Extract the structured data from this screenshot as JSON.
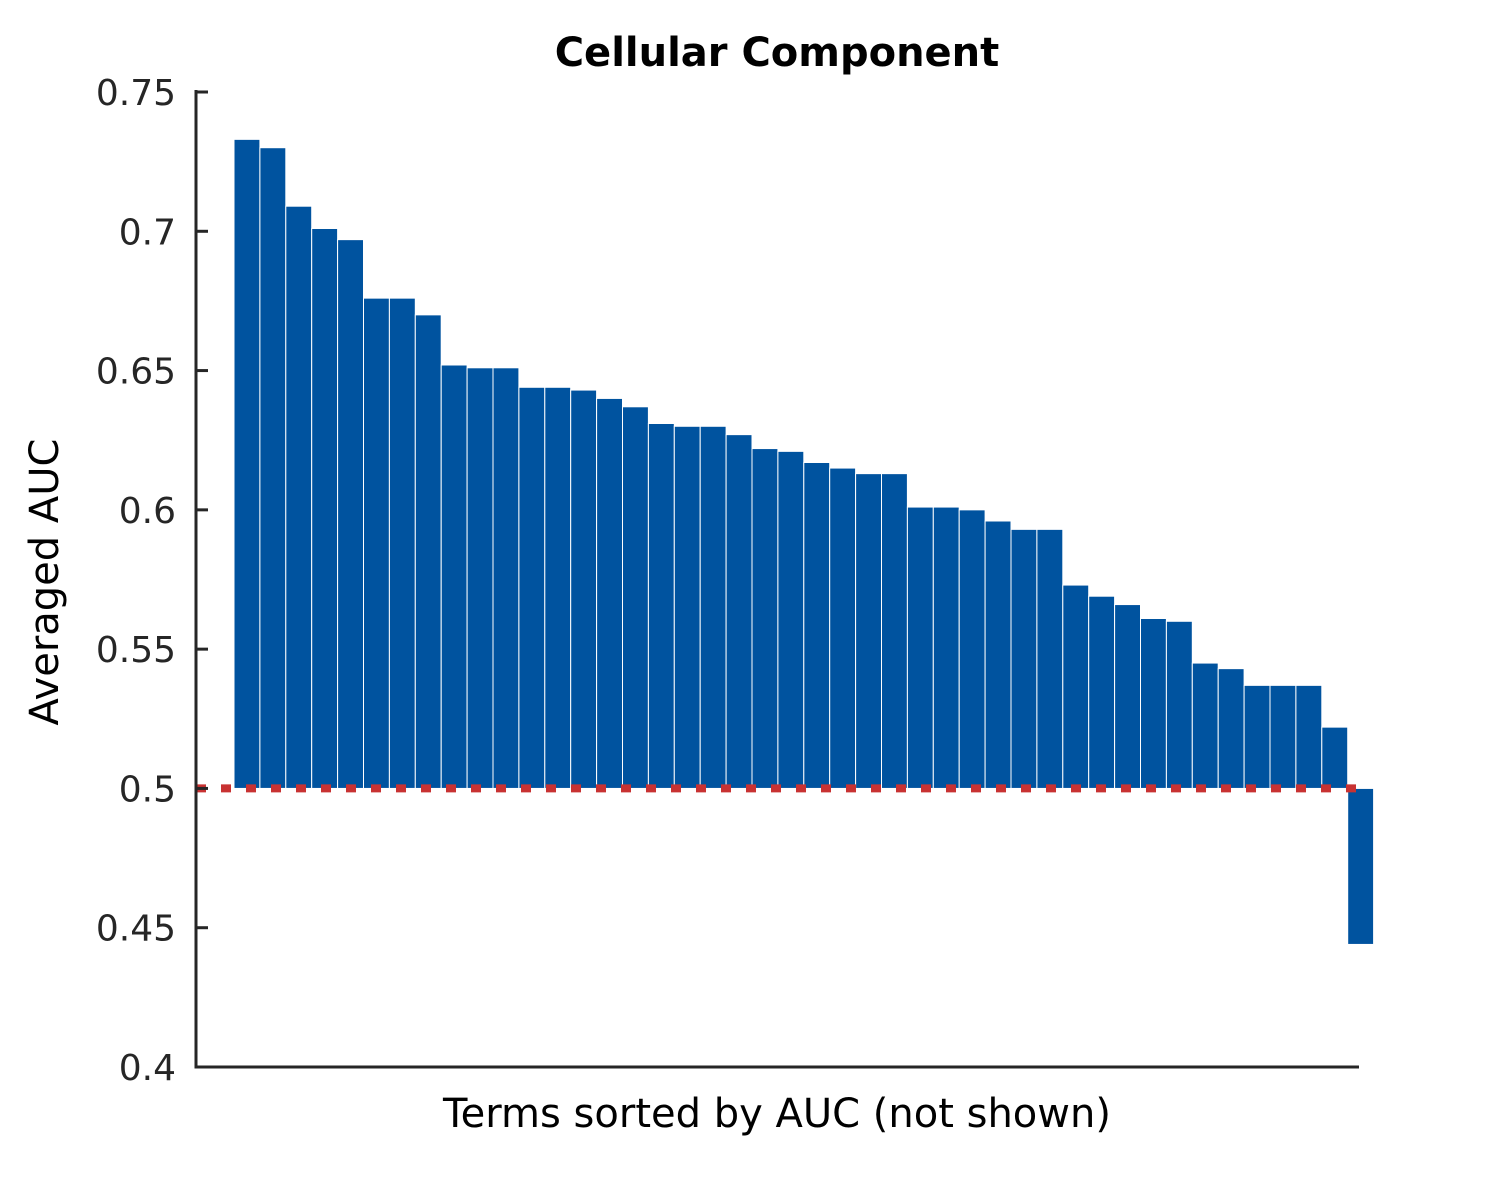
{
  "chart_data": {
    "type": "bar",
    "title": "Cellular Component",
    "xlabel": "Terms sorted by AUC (not shown)",
    "ylabel": "Averaged AUC",
    "ylim": [
      0.4,
      0.75
    ],
    "yticks": [
      "0.4",
      "0.45",
      "0.5",
      "0.55",
      "0.6",
      "0.65",
      "0.7",
      "0.75"
    ],
    "baseline": 0.5,
    "reference_line": 0.5,
    "values": [
      0.733,
      0.73,
      0.709,
      0.701,
      0.697,
      0.676,
      0.676,
      0.67,
      0.652,
      0.651,
      0.651,
      0.644,
      0.644,
      0.643,
      0.64,
      0.637,
      0.631,
      0.63,
      0.63,
      0.627,
      0.622,
      0.621,
      0.617,
      0.615,
      0.613,
      0.613,
      0.601,
      0.601,
      0.6,
      0.596,
      0.593,
      0.593,
      0.573,
      0.569,
      0.566,
      0.561,
      0.56,
      0.545,
      0.543,
      0.537,
      0.537,
      0.537,
      0.522,
      0.444
    ],
    "grid": false,
    "colors": {
      "bar": "#00539f",
      "reference_line": "#c83232",
      "axis": "#262626"
    }
  }
}
